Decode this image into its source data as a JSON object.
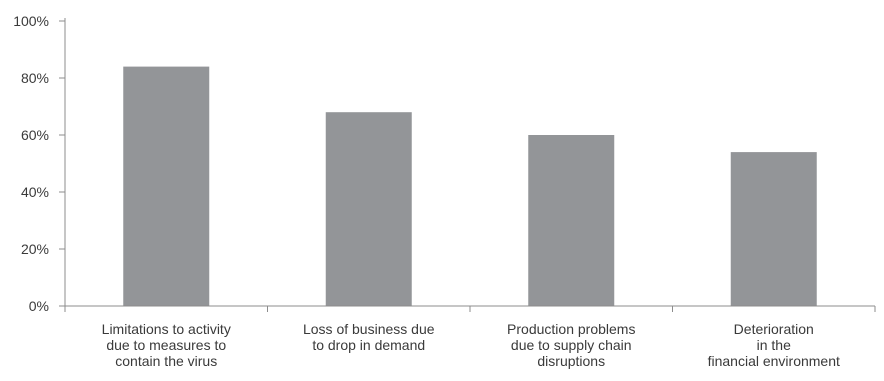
{
  "chart_data": {
    "type": "bar",
    "categories": [
      [
        "Limitations to activity",
        "due to measures to",
        "contain the virus"
      ],
      [
        "Loss of business due",
        "to drop in demand"
      ],
      [
        "Production problems",
        "due to supply chain",
        "disruptions"
      ],
      [
        "Deterioration",
        "in the",
        "financial environment"
      ]
    ],
    "values": [
      84,
      68,
      60,
      54
    ],
    "ylim": [
      0,
      100
    ],
    "yticks": [
      "0%",
      "20%",
      "40%",
      "60%",
      "80%",
      "100%"
    ],
    "ytick_values": [
      0,
      20,
      40,
      60,
      80,
      100
    ],
    "bar_color": "#939598",
    "axis_color": "#8c8c8c",
    "text_color": "#3a3a3a",
    "grid": false,
    "legend": "none"
  }
}
